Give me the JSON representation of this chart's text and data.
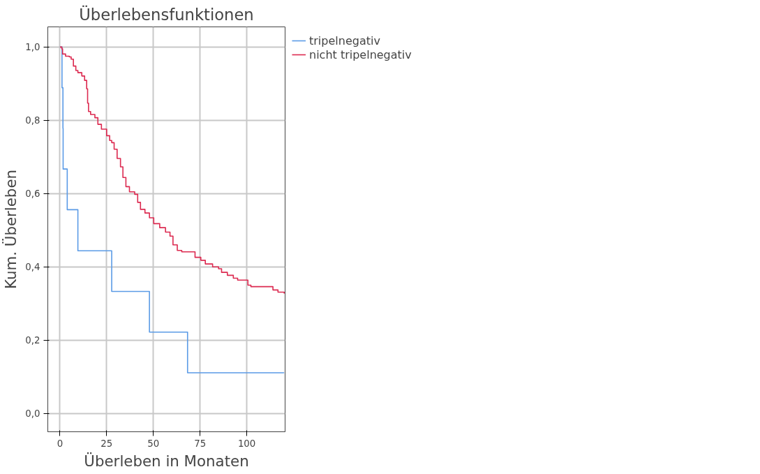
{
  "chart_data": {
    "type": "step",
    "title": "Überlebensfunktionen",
    "xlabel": "Überleben in Monaten",
    "ylabel": "Kum. Überleben",
    "xlim": [
      -6.5,
      120.5
    ],
    "ylim": [
      -0.05,
      1.055
    ],
    "xticks": [
      0,
      25,
      50,
      75,
      100
    ],
    "yticks": [
      {
        "value": 0,
        "label": "0,0"
      },
      {
        "value": 0.2,
        "label": "0,2"
      },
      {
        "value": 0.4,
        "label": "0,4"
      },
      {
        "value": 0.6,
        "label": "0,6"
      },
      {
        "value": 0.8,
        "label": "0,8"
      },
      {
        "value": 1.0,
        "label": "1,0"
      }
    ],
    "grid": true,
    "legend": "top right",
    "series": [
      {
        "name": "tripelnegativ",
        "color": "#5b9be6",
        "x": [
          0,
          1.1,
          1.6,
          1.7,
          3.9,
          9.6,
          27.7,
          47.9,
          68.3,
          120
        ],
        "values": [
          1.0,
          0.889,
          0.778,
          0.667,
          0.556,
          0.444,
          0.333,
          0.222,
          0.111,
          0.111
        ]
      },
      {
        "name": "nicht tripelnegativ",
        "color": "#dc2a50",
        "x": [
          0,
          1,
          1.4,
          3,
          5,
          6,
          7.2,
          8.5,
          9.6,
          11.7,
          13.2,
          14.3,
          14.8,
          15.3,
          16.4,
          18.7,
          20.3,
          22.2,
          25,
          26.6,
          27.7,
          29,
          30.6,
          32.4,
          33.7,
          35.3,
          37.2,
          40,
          41.6,
          43.1,
          45.5,
          47.9,
          50.2,
          53.4,
          56.5,
          58.9,
          60.5,
          62.8,
          65.2,
          72.3,
          75.4,
          77.8,
          81.7,
          84.9,
          86.5,
          89.6,
          92.8,
          95.1,
          100.6,
          102.2,
          114,
          116.7,
          120
        ],
        "values": [
          1.0,
          0.995,
          0.981,
          0.975,
          0.973,
          0.967,
          0.948,
          0.936,
          0.93,
          0.921,
          0.909,
          0.886,
          0.847,
          0.824,
          0.816,
          0.807,
          0.789,
          0.776,
          0.758,
          0.745,
          0.739,
          0.721,
          0.696,
          0.673,
          0.644,
          0.619,
          0.605,
          0.598,
          0.576,
          0.557,
          0.547,
          0.534,
          0.518,
          0.507,
          0.495,
          0.484,
          0.46,
          0.445,
          0.441,
          0.426,
          0.418,
          0.408,
          0.4,
          0.395,
          0.385,
          0.377,
          0.369,
          0.364,
          0.35,
          0.346,
          0.337,
          0.331,
          0.327
        ]
      }
    ]
  }
}
